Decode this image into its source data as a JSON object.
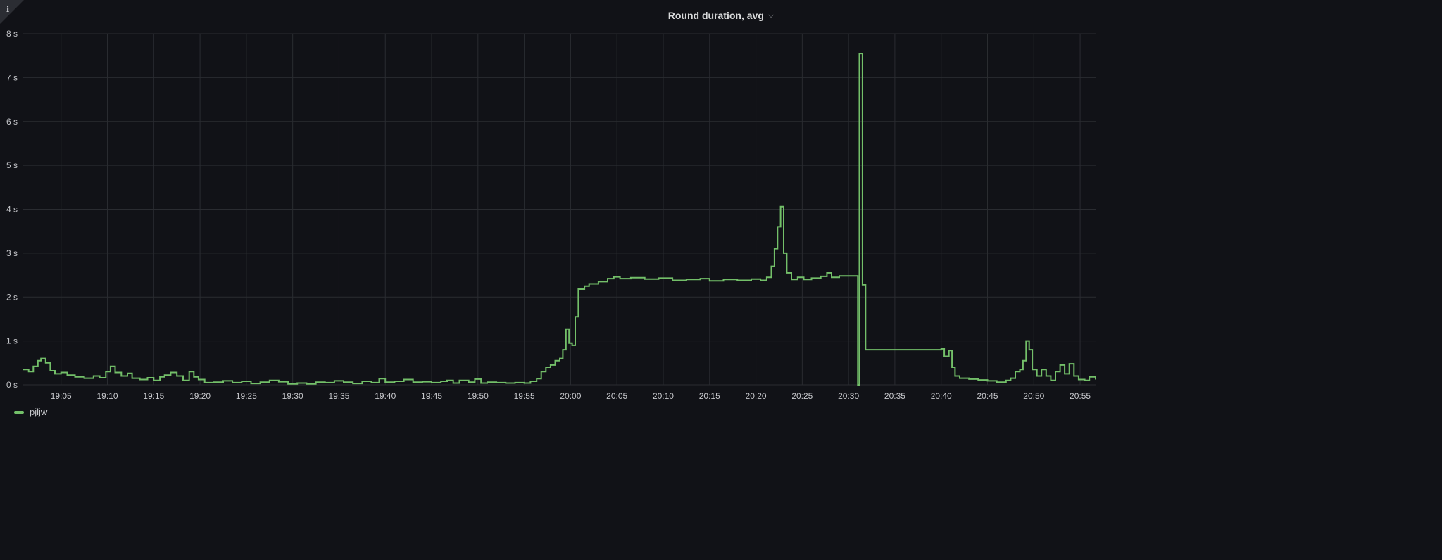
{
  "panel": {
    "title": "Round duration, avg",
    "info_glyph": "i",
    "chevron": "⌵"
  },
  "colors": {
    "background": "#111217",
    "grid": "#2a2c31",
    "tick_text": "#c7c8cc",
    "series": "#73bf69"
  },
  "chart_data": {
    "type": "line",
    "title": "Round duration, avg",
    "xlabel": "",
    "ylabel": "",
    "x_unit": "time",
    "ylim": [
      0,
      8
    ],
    "y_ticks": [
      "0 s",
      "1 s",
      "2 s",
      "3 s",
      "4 s",
      "5 s",
      "6 s",
      "7 s",
      "8 s"
    ],
    "y_tick_values": [
      0,
      1,
      2,
      3,
      4,
      5,
      6,
      7,
      8
    ],
    "xlim": [
      "19:00:55",
      "20:56:40"
    ],
    "x_ticks": [
      "19:05",
      "19:10",
      "19:15",
      "19:20",
      "19:25",
      "19:30",
      "19:35",
      "19:40",
      "19:45",
      "19:50",
      "19:55",
      "20:00",
      "20:05",
      "20:10",
      "20:15",
      "20:20",
      "20:25",
      "20:30",
      "20:35",
      "20:40",
      "20:45",
      "20:50",
      "20:55"
    ],
    "grid": true,
    "legend": "bottom-left",
    "series": [
      {
        "name": "pjljw",
        "step": true,
        "points": [
          [
            "19:00:55",
            0.35
          ],
          [
            "19:01:30",
            0.3
          ],
          [
            "19:02:00",
            0.42
          ],
          [
            "19:02:30",
            0.55
          ],
          [
            "19:02:50",
            0.6
          ],
          [
            "19:03:20",
            0.5
          ],
          [
            "19:03:50",
            0.32
          ],
          [
            "19:04:20",
            0.25
          ],
          [
            "19:05:00",
            0.28
          ],
          [
            "19:05:40",
            0.22
          ],
          [
            "19:06:30",
            0.18
          ],
          [
            "19:07:30",
            0.15
          ],
          [
            "19:08:30",
            0.2
          ],
          [
            "19:09:10",
            0.16
          ],
          [
            "19:09:50",
            0.3
          ],
          [
            "19:10:20",
            0.42
          ],
          [
            "19:10:50",
            0.28
          ],
          [
            "19:11:30",
            0.2
          ],
          [
            "19:12:10",
            0.26
          ],
          [
            "19:12:40",
            0.15
          ],
          [
            "19:13:30",
            0.12
          ],
          [
            "19:14:20",
            0.16
          ],
          [
            "19:15:00",
            0.1
          ],
          [
            "19:15:40",
            0.18
          ],
          [
            "19:16:10",
            0.22
          ],
          [
            "19:16:50",
            0.28
          ],
          [
            "19:17:30",
            0.2
          ],
          [
            "19:18:10",
            0.1
          ],
          [
            "19:18:50",
            0.3
          ],
          [
            "19:19:20",
            0.18
          ],
          [
            "19:19:50",
            0.12
          ],
          [
            "19:20:30",
            0.05
          ],
          [
            "19:21:30",
            0.06
          ],
          [
            "19:22:30",
            0.09
          ],
          [
            "19:23:30",
            0.05
          ],
          [
            "19:24:30",
            0.08
          ],
          [
            "19:25:30",
            0.03
          ],
          [
            "19:26:30",
            0.06
          ],
          [
            "19:27:30",
            0.1
          ],
          [
            "19:28:30",
            0.07
          ],
          [
            "19:29:30",
            0.02
          ],
          [
            "19:30:30",
            0.04
          ],
          [
            "19:31:30",
            0.02
          ],
          [
            "19:32:30",
            0.06
          ],
          [
            "19:33:30",
            0.05
          ],
          [
            "19:34:30",
            0.09
          ],
          [
            "19:35:30",
            0.06
          ],
          [
            "19:36:30",
            0.03
          ],
          [
            "19:37:30",
            0.08
          ],
          [
            "19:38:30",
            0.05
          ],
          [
            "19:39:20",
            0.14
          ],
          [
            "19:40:00",
            0.06
          ],
          [
            "19:41:00",
            0.08
          ],
          [
            "19:42:00",
            0.12
          ],
          [
            "19:43:00",
            0.06
          ],
          [
            "19:44:00",
            0.07
          ],
          [
            "19:45:00",
            0.05
          ],
          [
            "19:46:00",
            0.08
          ],
          [
            "19:46:40",
            0.1
          ],
          [
            "19:47:20",
            0.04
          ],
          [
            "19:48:00",
            0.1
          ],
          [
            "19:49:00",
            0.06
          ],
          [
            "19:49:40",
            0.13
          ],
          [
            "19:50:20",
            0.04
          ],
          [
            "19:51:00",
            0.06
          ],
          [
            "19:52:00",
            0.05
          ],
          [
            "19:53:00",
            0.04
          ],
          [
            "19:54:00",
            0.05
          ],
          [
            "19:55:00",
            0.04
          ],
          [
            "19:55:40",
            0.08
          ],
          [
            "19:56:20",
            0.14
          ],
          [
            "19:56:50",
            0.3
          ],
          [
            "19:57:20",
            0.4
          ],
          [
            "19:57:50",
            0.45
          ],
          [
            "19:58:20",
            0.55
          ],
          [
            "19:58:50",
            0.6
          ],
          [
            "19:59:10",
            0.8
          ],
          [
            "19:59:30",
            1.27
          ],
          [
            "19:59:50",
            0.95
          ],
          [
            "20:00:10",
            0.9
          ],
          [
            "20:00:30",
            1.55
          ],
          [
            "20:00:50",
            2.18
          ],
          [
            "20:01:30",
            2.25
          ],
          [
            "20:02:00",
            2.3
          ],
          [
            "20:03:00",
            2.35
          ],
          [
            "20:04:00",
            2.42
          ],
          [
            "20:04:40",
            2.46
          ],
          [
            "20:05:20",
            2.42
          ],
          [
            "20:06:30",
            2.44
          ],
          [
            "20:08:00",
            2.41
          ],
          [
            "20:09:30",
            2.43
          ],
          [
            "20:11:00",
            2.38
          ],
          [
            "20:12:30",
            2.4
          ],
          [
            "20:14:00",
            2.42
          ],
          [
            "20:15:00",
            2.37
          ],
          [
            "20:16:30",
            2.4
          ],
          [
            "20:18:00",
            2.38
          ],
          [
            "20:19:30",
            2.41
          ],
          [
            "20:20:30",
            2.38
          ],
          [
            "20:21:10",
            2.45
          ],
          [
            "20:21:40",
            2.7
          ],
          [
            "20:22:00",
            3.1
          ],
          [
            "20:22:20",
            3.6
          ],
          [
            "20:22:40",
            4.06
          ],
          [
            "20:23:00",
            3.0
          ],
          [
            "20:23:20",
            2.55
          ],
          [
            "20:23:50",
            2.4
          ],
          [
            "20:24:30",
            2.45
          ],
          [
            "20:25:10",
            2.4
          ],
          [
            "20:26:00",
            2.43
          ],
          [
            "20:27:00",
            2.47
          ],
          [
            "20:27:40",
            2.55
          ],
          [
            "20:28:10",
            2.45
          ],
          [
            "20:29:00",
            2.48
          ],
          [
            "20:29:30",
            2.48
          ],
          [
            "20:31:00",
            0.0
          ],
          [
            "20:31:10",
            7.55
          ],
          [
            "20:31:30",
            2.28
          ],
          [
            "20:31:50",
            0.8
          ],
          [
            "20:34:00",
            0.8
          ],
          [
            "20:37:00",
            0.8
          ],
          [
            "20:40:00",
            0.82
          ],
          [
            "20:40:20",
            0.65
          ],
          [
            "20:40:50",
            0.78
          ],
          [
            "20:41:10",
            0.4
          ],
          [
            "20:41:30",
            0.2
          ],
          [
            "20:42:00",
            0.15
          ],
          [
            "20:43:00",
            0.13
          ],
          [
            "20:44:00",
            0.11
          ],
          [
            "20:45:00",
            0.09
          ],
          [
            "20:46:00",
            0.06
          ],
          [
            "20:47:00",
            0.1
          ],
          [
            "20:47:30",
            0.15
          ],
          [
            "20:48:00",
            0.3
          ],
          [
            "20:48:30",
            0.35
          ],
          [
            "20:48:50",
            0.55
          ],
          [
            "20:49:10",
            1.0
          ],
          [
            "20:49:30",
            0.8
          ],
          [
            "20:49:50",
            0.35
          ],
          [
            "20:50:20",
            0.2
          ],
          [
            "20:50:50",
            0.35
          ],
          [
            "20:51:20",
            0.2
          ],
          [
            "20:51:50",
            0.1
          ],
          [
            "20:52:20",
            0.3
          ],
          [
            "20:52:50",
            0.45
          ],
          [
            "20:53:20",
            0.25
          ],
          [
            "20:53:50",
            0.48
          ],
          [
            "20:54:20",
            0.2
          ],
          [
            "20:54:50",
            0.12
          ],
          [
            "20:55:30",
            0.1
          ],
          [
            "20:56:00",
            0.18
          ],
          [
            "20:56:40",
            0.12
          ]
        ]
      }
    ]
  }
}
